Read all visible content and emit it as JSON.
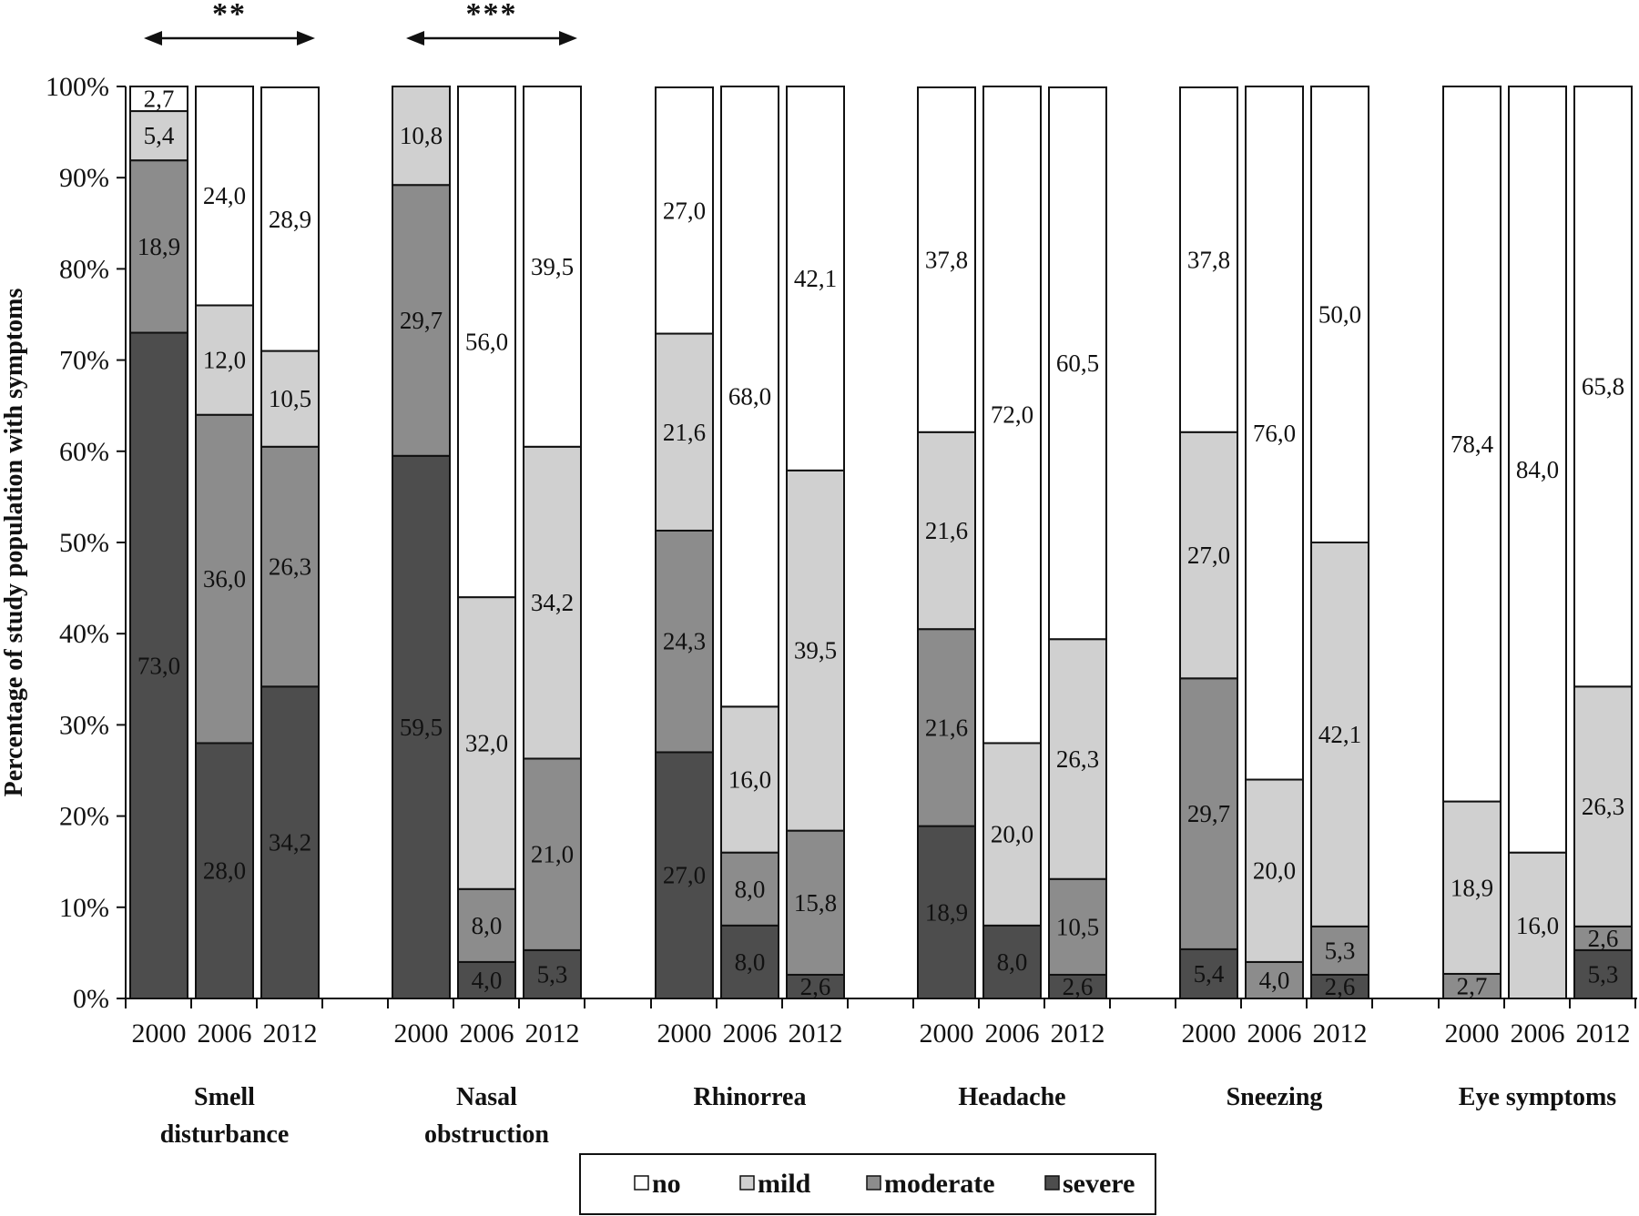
{
  "chart_data": {
    "type": "bar",
    "stacked": true,
    "ylabel": "Percentage of study population with symptoms",
    "xlabel": "",
    "ylim": [
      0,
      100
    ],
    "ytick_labels": [
      "0%",
      "10%",
      "20%",
      "30%",
      "40%",
      "50%",
      "60%",
      "70%",
      "80%",
      "90%",
      "100%"
    ],
    "years": [
      "2000",
      "2006",
      "2012"
    ],
    "levels": [
      "severe",
      "moderate",
      "mild",
      "no"
    ],
    "level_colors": {
      "severe": "#4d4d4d",
      "moderate": "#8c8c8c",
      "mild": "#d0d0d0",
      "no": "#ffffff"
    },
    "legend": [
      {
        "key": "no",
        "label": "no"
      },
      {
        "key": "mild",
        "label": "mild"
      },
      {
        "key": "moderate",
        "label": "moderate"
      },
      {
        "key": "severe",
        "label": "severe"
      }
    ],
    "legend_position": "bottom",
    "groups": [
      {
        "name_lines": [
          "Smell",
          "disturbance"
        ],
        "significance": "**",
        "bars": [
          {
            "year": "2000",
            "severe": 73.0,
            "moderate": 18.9,
            "mild": 5.4,
            "no": 2.7,
            "labels": {
              "severe": "73,0",
              "moderate": "18,9",
              "mild": "5,4",
              "no": "2,7"
            }
          },
          {
            "year": "2006",
            "severe": 28.0,
            "moderate": 36.0,
            "mild": 12.0,
            "no": 24.0,
            "labels": {
              "severe": "28,0",
              "moderate": "36,0",
              "mild": "12,0",
              "no": "24,0"
            }
          },
          {
            "year": "2012",
            "severe": 34.2,
            "moderate": 26.3,
            "mild": 10.5,
            "no": 28.9,
            "labels": {
              "severe": "34,2",
              "moderate": "26,3",
              "mild": "10,5",
              "no": "28,9"
            }
          }
        ]
      },
      {
        "name_lines": [
          "Nasal",
          "obstruction"
        ],
        "significance": "***",
        "bars": [
          {
            "year": "2000",
            "severe": 59.5,
            "moderate": 29.7,
            "mild": 10.8,
            "no": 0,
            "labels": {
              "severe": "59,5",
              "moderate": "29,7",
              "mild": "10,8"
            }
          },
          {
            "year": "2006",
            "severe": 4.0,
            "moderate": 8.0,
            "mild": 32.0,
            "no": 56.0,
            "labels": {
              "severe": "4,0",
              "moderate": "8,0",
              "mild": "32,0",
              "no": "56,0"
            }
          },
          {
            "year": "2012",
            "severe": 5.3,
            "moderate": 21.0,
            "mild": 34.2,
            "no": 39.5,
            "labels": {
              "severe": "5,3",
              "moderate": "21,0",
              "mild": "34,2",
              "no": "39,5"
            }
          }
        ]
      },
      {
        "name_lines": [
          "Rhinorrea"
        ],
        "significance": "",
        "bars": [
          {
            "year": "2000",
            "severe": 27.0,
            "moderate": 24.3,
            "mild": 21.6,
            "no": 27.0,
            "labels": {
              "severe": "27,0",
              "moderate": "24,3",
              "mild": "21,6",
              "no": "27,0"
            }
          },
          {
            "year": "2006",
            "severe": 8.0,
            "moderate": 8.0,
            "mild": 16.0,
            "no": 68.0,
            "labels": {
              "severe": "8,0",
              "moderate": "8,0",
              "mild": "16,0",
              "no": "68,0"
            }
          },
          {
            "year": "2012",
            "severe": 2.6,
            "moderate": 15.8,
            "mild": 39.5,
            "no": 42.1,
            "labels": {
              "severe": "2,6",
              "moderate": "15,8",
              "mild": "39,5",
              "no": "42,1"
            }
          }
        ]
      },
      {
        "name_lines": [
          "Headache"
        ],
        "significance": "",
        "bars": [
          {
            "year": "2000",
            "severe": 18.9,
            "moderate": 21.6,
            "mild": 21.6,
            "no": 37.8,
            "labels": {
              "severe": "18,9",
              "moderate": "21,6",
              "mild": "21,6",
              "no": "37,8"
            }
          },
          {
            "year": "2006",
            "severe": 8.0,
            "moderate": 0,
            "mild": 20.0,
            "no": 72.0,
            "labels": {
              "severe": "8,0",
              "mild": "20,0",
              "no": "72,0"
            }
          },
          {
            "year": "2012",
            "severe": 2.6,
            "moderate": 10.5,
            "mild": 26.3,
            "no": 60.5,
            "labels": {
              "severe": "2,6",
              "moderate": "10,5",
              "mild": "26,3",
              "no": "60,5"
            }
          }
        ]
      },
      {
        "name_lines": [
          "Sneezing"
        ],
        "significance": "",
        "bars": [
          {
            "year": "2000",
            "severe": 5.4,
            "moderate": 29.7,
            "mild": 27.0,
            "no": 37.8,
            "labels": {
              "severe": "5,4",
              "moderate": "29,7",
              "mild": "27,0",
              "no": "37,8"
            }
          },
          {
            "year": "2006",
            "severe": 0,
            "moderate": 4.0,
            "mild": 20.0,
            "no": 76.0,
            "labels": {
              "moderate": "4,0",
              "mild": "20,0",
              "no": "76,0"
            }
          },
          {
            "year": "2012",
            "severe": 2.6,
            "moderate": 5.3,
            "mild": 42.1,
            "no": 50.0,
            "labels": {
              "severe": "2,6",
              "moderate": "5,3",
              "mild": "42,1",
              "no": "50,0"
            }
          }
        ]
      },
      {
        "name_lines": [
          "Eye symptoms"
        ],
        "significance": "",
        "bars": [
          {
            "year": "2000",
            "severe": 0,
            "moderate": 2.7,
            "mild": 18.9,
            "no": 78.4,
            "labels": {
              "moderate": "2,7",
              "mild": "18,9",
              "no": "78,4"
            }
          },
          {
            "year": "2006",
            "severe": 0,
            "moderate": 0,
            "mild": 16.0,
            "no": 84.0,
            "labels": {
              "mild": "16,0",
              "no": "84,0"
            }
          },
          {
            "year": "2012",
            "severe": 5.3,
            "moderate": 2.6,
            "mild": 26.3,
            "no": 65.8,
            "labels": {
              "severe": "5,3",
              "moderate": "2,6",
              "mild": "26,3",
              "no": "65,8"
            }
          }
        ]
      }
    ]
  }
}
